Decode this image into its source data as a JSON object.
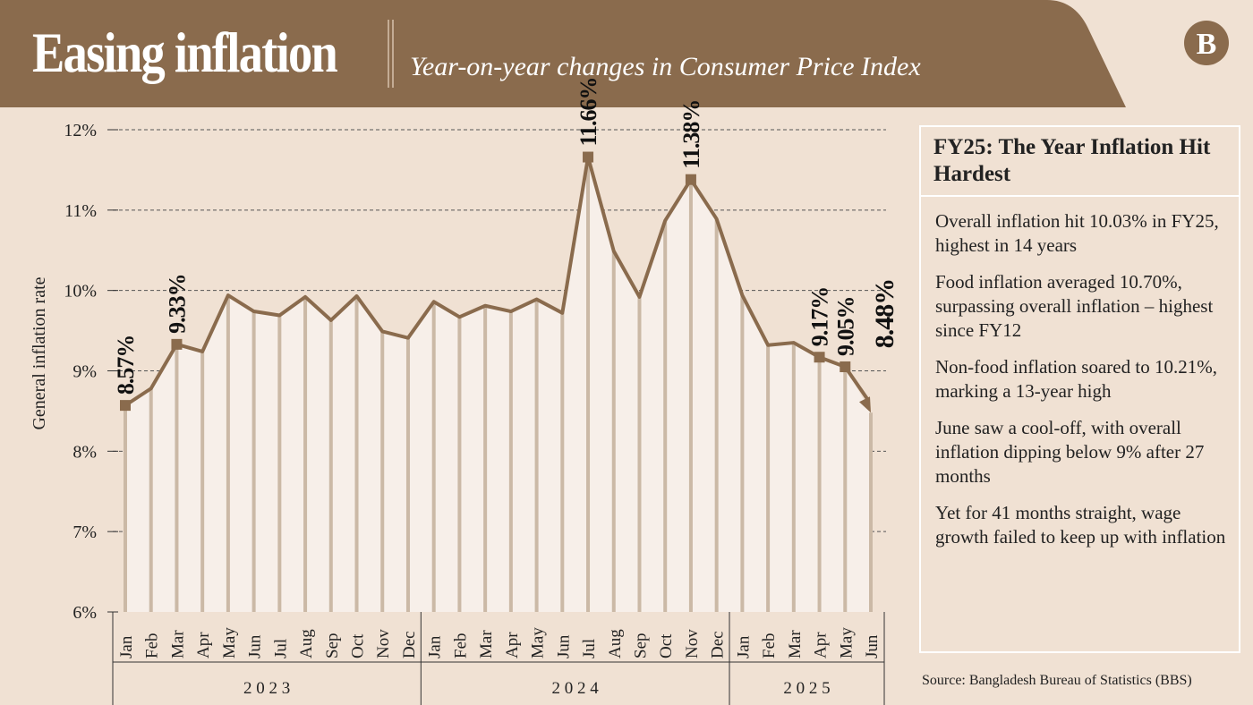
{
  "header": {
    "title": "Easing inflation",
    "subtitle": "Year-on-year changes in Consumer Price Index",
    "logo": "TBS logo"
  },
  "colors": {
    "header": "#8a6b4d",
    "line": "#8a6b4d",
    "background": "#f0e1d3",
    "fill": "#f7efe9",
    "droplines": "#cbb9a6"
  },
  "panel": {
    "title": "FY25: The Year Inflation Hit Hardest",
    "points": [
      "Overall inflation hit 10.03% in FY25, highest in 14 years",
      "Food inflation averaged 10.70%, surpassing overall inflation – highest since FY12",
      "Non-food inflation soared to 10.21%, marking a 13-year high",
      "June saw a cool-off, with overall inflation dipping below 9% after 27 months",
      "Yet for 41 months straight, wage growth failed to keep up with inflation"
    ]
  },
  "source": "Source: Bangladesh Bureau of Statistics (BBS)",
  "chart_data": {
    "type": "line",
    "title": "",
    "xlabel": "",
    "ylabel": "General inflation rate",
    "ylim": [
      6,
      12
    ],
    "grid": "horizontal dashed",
    "yticks": [
      "6%",
      "7%",
      "8%",
      "9%",
      "10%",
      "11%",
      "12%"
    ],
    "categories": [
      "Jan",
      "Feb",
      "Mar",
      "Apr",
      "May",
      "Jun",
      "Jul",
      "Aug",
      "Sep",
      "Oct",
      "Nov",
      "Dec",
      "Jan",
      "Feb",
      "Mar",
      "Apr",
      "May",
      "Jun",
      "Jul",
      "Aug",
      "Sep",
      "Oct",
      "Nov",
      "Dec",
      "Jan",
      "Feb",
      "Mar",
      "Apr",
      "May",
      "Jun"
    ],
    "years": [
      {
        "label": "2 0 2 3",
        "months": 12
      },
      {
        "label": "2 0 2 4",
        "months": 12
      },
      {
        "label": "2 0 2 5",
        "months": 6
      }
    ],
    "values": [
      8.57,
      8.78,
      9.33,
      9.24,
      9.94,
      9.74,
      9.69,
      9.92,
      9.63,
      9.93,
      9.49,
      9.41,
      9.86,
      9.67,
      9.81,
      9.74,
      9.89,
      9.72,
      11.66,
      10.49,
      9.92,
      10.87,
      11.38,
      10.89,
      9.94,
      9.32,
      9.35,
      9.17,
      9.05,
      8.48
    ],
    "labels": [
      {
        "index": 0,
        "text": "8.57%"
      },
      {
        "index": 2,
        "text": "9.33%"
      },
      {
        "index": 18,
        "text": "11.66%"
      },
      {
        "index": 22,
        "text": "11.38%"
      },
      {
        "index": 27,
        "text": "9.17%"
      },
      {
        "index": 28,
        "text": "9.05%"
      },
      {
        "index": 29,
        "text": "8.48%"
      }
    ]
  }
}
